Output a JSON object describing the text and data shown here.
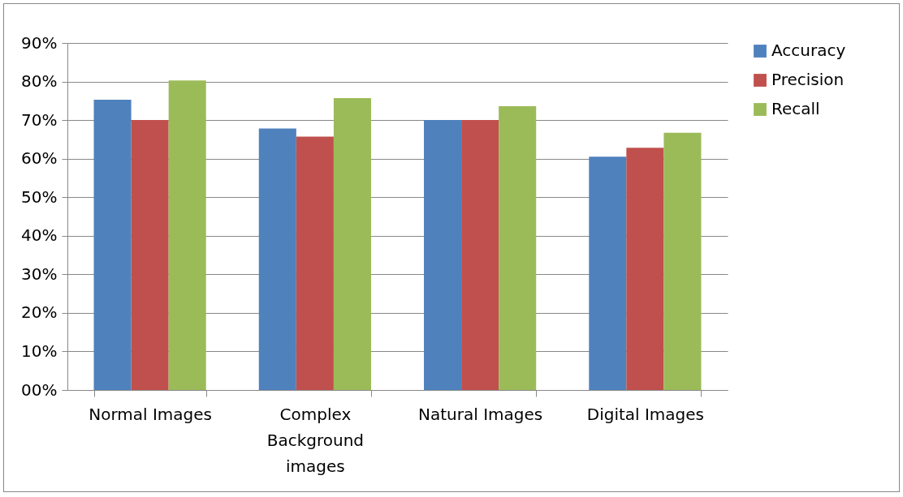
{
  "chart_data": {
    "type": "bar",
    "categories": [
      "Normal Images",
      "Complex Background images",
      "Natural Images",
      "Digital Images"
    ],
    "series": [
      {
        "name": "Accuracy",
        "color": "#4f81bd",
        "values": [
          75.3,
          67.8,
          70,
          60.5
        ]
      },
      {
        "name": "Precision",
        "color": "#c0504d",
        "values": [
          70,
          65.7,
          70,
          62.8
        ]
      },
      {
        "name": "Recall",
        "color": "#9bbb59",
        "values": [
          80.3,
          75.7,
          73.6,
          66.7
        ]
      }
    ],
    "ylim": [
      0,
      90
    ],
    "yticks": [
      {
        "value": 0,
        "label": "00%"
      },
      {
        "value": 10,
        "label": "10%"
      },
      {
        "value": 20,
        "label": "20%"
      },
      {
        "value": 30,
        "label": "30%"
      },
      {
        "value": 40,
        "label": "40%"
      },
      {
        "value": 50,
        "label": "50%"
      },
      {
        "value": 60,
        "label": "60%"
      },
      {
        "value": 70,
        "label": "70%"
      },
      {
        "value": 80,
        "label": "80%"
      },
      {
        "value": 90,
        "label": "90%"
      }
    ],
    "grid": "y",
    "legend": "right"
  }
}
